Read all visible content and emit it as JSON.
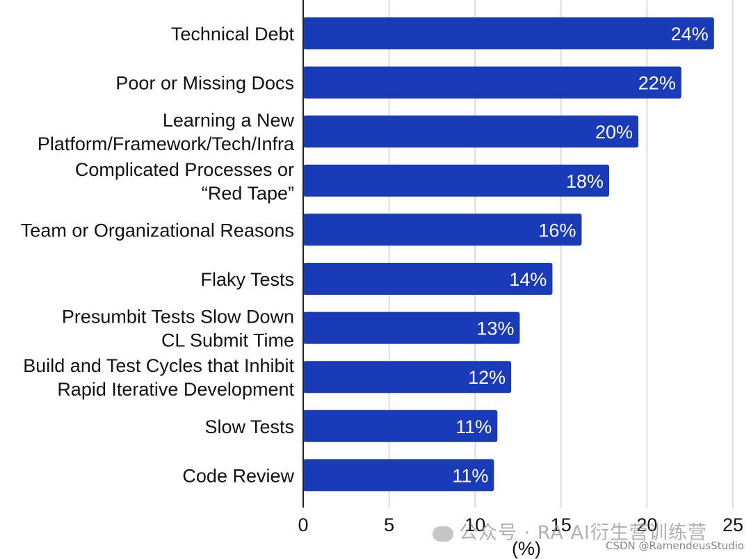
{
  "chart_data": {
    "type": "bar",
    "orientation": "horizontal",
    "categories": [
      [
        "Technical Debt"
      ],
      [
        "Poor or Missing Docs"
      ],
      [
        "Learning a New",
        "Platform/Framework/Tech/Infra"
      ],
      [
        "Complicated Processes or",
        "“Red Tape”"
      ],
      [
        "Team or Organizational Reasons"
      ],
      [
        "Flaky Tests"
      ],
      [
        "Presumbit Tests Slow Down",
        "CL Submit Time"
      ],
      [
        "Build and Test Cycles that Inhibit",
        "Rapid Iterative Development"
      ],
      [
        "Slow Tests"
      ],
      [
        "Code Review"
      ]
    ],
    "values": [
      24,
      22,
      20,
      18,
      16,
      14,
      13,
      12,
      11,
      11
    ],
    "bar_lengths": [
      23.9,
      22.0,
      19.5,
      17.8,
      16.2,
      14.5,
      12.6,
      12.1,
      11.3,
      11.1
    ],
    "data_labels": [
      "24%",
      "22%",
      "20%",
      "18%",
      "16%",
      "14%",
      "13%",
      "12%",
      "11%",
      "11%"
    ],
    "xlim": [
      0,
      25
    ],
    "xticks": [
      0,
      5,
      10,
      15,
      20,
      25
    ],
    "xtick_labels": [
      "0",
      "5",
      "10",
      "15",
      "20",
      "25"
    ],
    "xlabel": "(%)",
    "ylabel": "",
    "title": "",
    "grid": "vertical",
    "bar_color": "#1a3bb8",
    "grid_color": "#d6d6d6"
  },
  "watermark": {
    "main": "公众号 · RA AI衍生营训练营",
    "source": "CSDN @RamendeusStudio"
  }
}
